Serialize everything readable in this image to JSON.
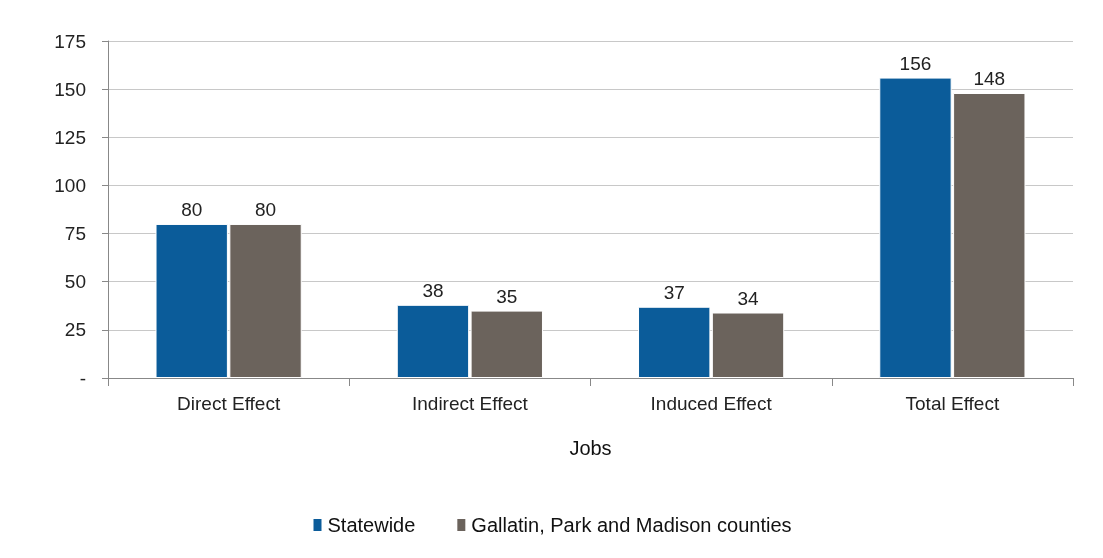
{
  "chart_data": {
    "type": "bar",
    "xlabel": "Jobs",
    "categories": [
      "Direct Effect",
      "Indirect Effect",
      "Induced Effect",
      "Total Effect"
    ],
    "series": [
      {
        "name": "Statewide",
        "color": "#0b5c9a",
        "values": [
          80,
          38,
          37,
          156
        ]
      },
      {
        "name": "Gallatin, Park and Madison counties",
        "color": "#6b635c",
        "values": [
          80,
          35,
          34,
          148
        ]
      }
    ],
    "ylim": [
      0,
      175
    ],
    "yticks": [
      {
        "value": 0,
        "label": "-"
      },
      25,
      50,
      75,
      100,
      125,
      150,
      175
    ],
    "grid": "y",
    "legend": "bottom",
    "data_labels": true
  }
}
